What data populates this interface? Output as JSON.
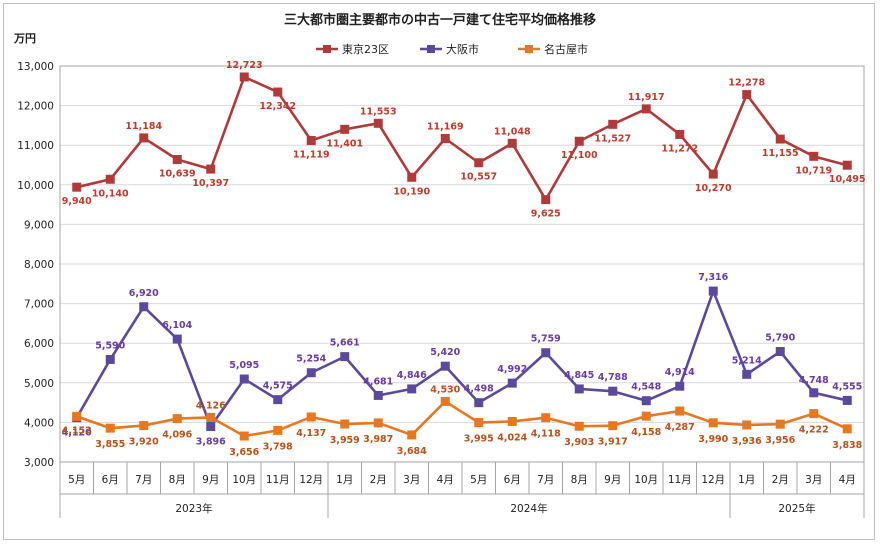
{
  "chart_data": {
    "type": "line",
    "title": "三大都市圏主要都市の中古一戸建て住宅平均価格推移",
    "ylabel": "万円",
    "ylim": [
      3000,
      13000
    ],
    "yticks": [
      3000,
      4000,
      5000,
      6000,
      7000,
      8000,
      9000,
      10000,
      11000,
      12000,
      13000
    ],
    "grid": true,
    "legend": "top-center",
    "categories": [
      "5月",
      "6月",
      "7月",
      "8月",
      "9月",
      "10月",
      "11月",
      "12月",
      "1月",
      "2月",
      "3月",
      "4月",
      "5月",
      "6月",
      "7月",
      "8月",
      "9月",
      "10月",
      "11月",
      "12月",
      "1月",
      "2月",
      "3月",
      "4月"
    ],
    "year_groups": [
      {
        "label": "2023年",
        "span": 8
      },
      {
        "label": "2024年",
        "span": 12
      },
      {
        "label": "2025年",
        "span": 4
      }
    ],
    "series": [
      {
        "name": "東京23区",
        "color": "#b03a3a",
        "label_color": "#c0392b",
        "values": [
          9940,
          10140,
          11184,
          10639,
          10397,
          12723,
          12342,
          11119,
          11401,
          11553,
          10190,
          11169,
          10557,
          11048,
          9625,
          11100,
          11527,
          11917,
          11272,
          10270,
          12278,
          11155,
          10719,
          10495
        ]
      },
      {
        "name": "大阪市",
        "color": "#5b4a9b",
        "label_color": "#6a3aa8",
        "values": [
          4120,
          5590,
          6920,
          6104,
          3896,
          5095,
          4575,
          5254,
          5661,
          4681,
          4846,
          5420,
          4498,
          4992,
          5759,
          4845,
          4788,
          4548,
          4914,
          7316,
          5214,
          5790,
          4748,
          4555
        ]
      },
      {
        "name": "名古屋市",
        "color": "#e87722",
        "label_color": "#b8501a",
        "values": [
          4152,
          3855,
          3920,
          4096,
          4126,
          3656,
          3798,
          4137,
          3959,
          3987,
          3684,
          4530,
          3995,
          4024,
          4118,
          3903,
          3917,
          4158,
          4287,
          3990,
          3936,
          3956,
          4222,
          3838
        ]
      }
    ]
  }
}
